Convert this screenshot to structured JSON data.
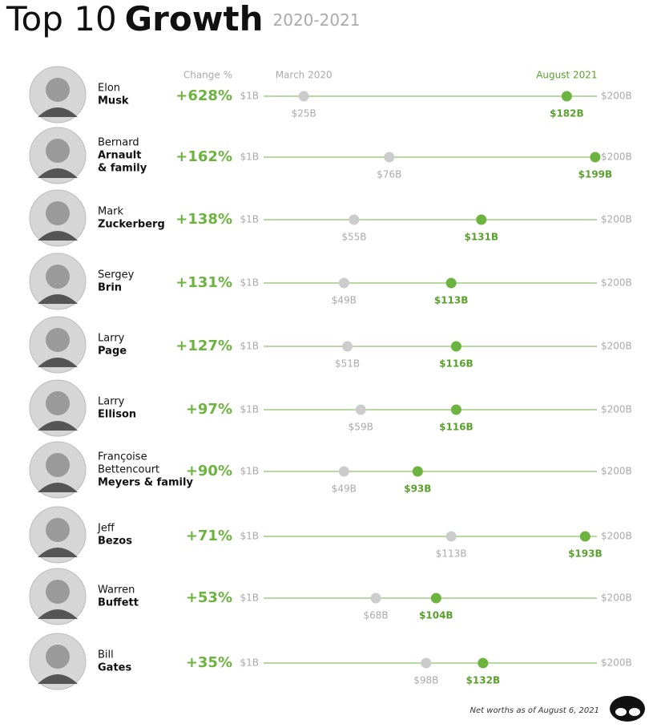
{
  "chart_data": {
    "type": "dumbbell",
    "title": "Top 10",
    "title_bold": "Growth",
    "subtitle": "2020-2021",
    "change_header": "Change %",
    "first_names": [
      [
        "Elon"
      ],
      [
        "Bernard"
      ],
      [
        "Mark"
      ],
      [
        "Sergey"
      ],
      [
        "Larry"
      ],
      [
        "Larry"
      ],
      [
        "Françoise",
        "Bettencourt"
      ],
      [
        "Jeff"
      ],
      [
        "Warren"
      ],
      [
        "Bill"
      ]
    ],
    "last_names": [
      [
        "Musk"
      ],
      [
        "Arnault",
        "& family"
      ],
      [
        "Zuckerberg"
      ],
      [
        "Brin"
      ],
      [
        "Page"
      ],
      [
        "Ellison"
      ],
      [
        "Meyers & family"
      ],
      [
        "Bezos"
      ],
      [
        "Buffett"
      ],
      [
        "Gates"
      ]
    ],
    "changes": [
      628,
      162,
      138,
      131,
      127,
      97,
      90,
      71,
      53,
      35
    ],
    "change_labels": [
      "+628%",
      "+162%",
      "+138%",
      "+131%",
      "+127%",
      "+97%",
      "+90%",
      "+71%",
      "+53%",
      "+35%"
    ],
    "change_color": "#6db33f",
    "xlim": [
      1,
      200
    ],
    "xticks": [
      {
        "value": 1,
        "label": "$1B"
      },
      {
        "value": 200,
        "label": "$200B"
      }
    ],
    "series": [
      {
        "name": "March 2020",
        "color": "#cccccc",
        "label_color": "#aaaaaa",
        "values": [
          25,
          76,
          55,
          49,
          51,
          59,
          49,
          113,
          68,
          98
        ],
        "value_labels": [
          "$25B",
          "$76B",
          "$55B",
          "$49B",
          "$51B",
          "$59B",
          "$49B",
          "$113B",
          "$68B",
          "$98B"
        ]
      },
      {
        "name": "August 2021",
        "color": "#6db33f",
        "label_color": "#5aa02c",
        "values": [
          182,
          199,
          131,
          113,
          116,
          116,
          93,
          193,
          104,
          132
        ],
        "value_labels": [
          "$182B",
          "$199B",
          "$131B",
          "$113B",
          "$116B",
          "$116B",
          "$93B",
          "$193B",
          "$104B",
          "$132B"
        ]
      }
    ],
    "footnote": "Net worths as of August 6, 2021"
  }
}
